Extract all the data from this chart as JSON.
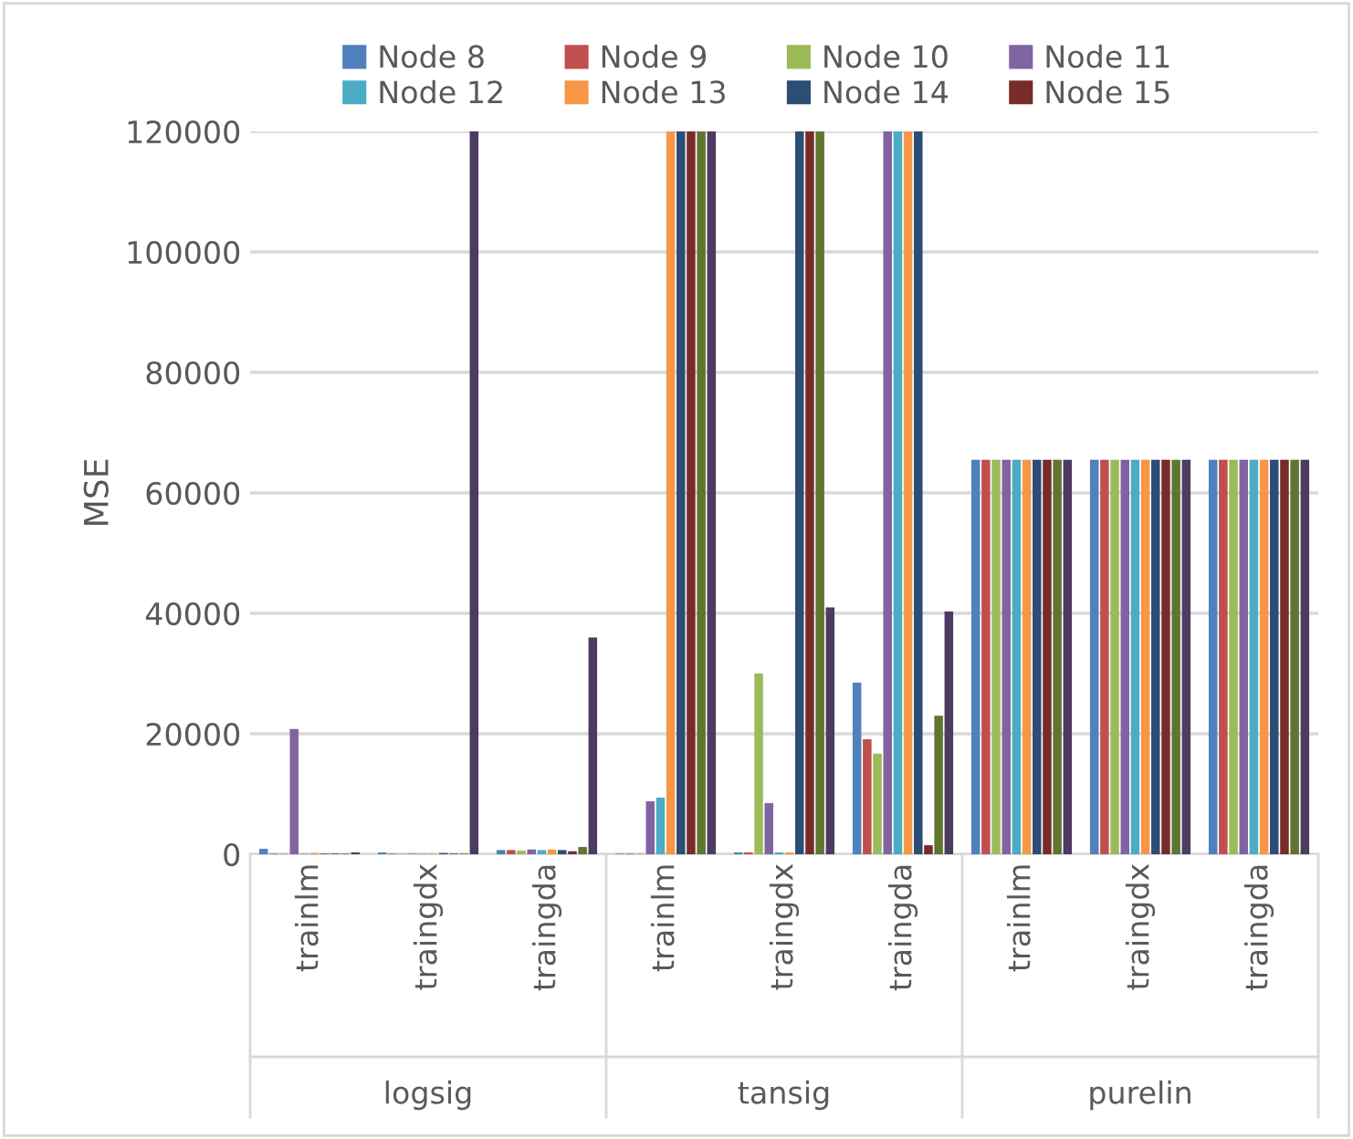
{
  "chart_data": {
    "type": "bar",
    "ylabel": "MSE",
    "categories": [
      "trainlm",
      "traingdx",
      "traingda",
      "trainlm",
      "traingdx",
      "traingda",
      "trainlm",
      "traingdx",
      "traingda"
    ],
    "annotations": [
      "logsig",
      "tansig",
      "purelin"
    ],
    "series": [
      {
        "name": "Node 8",
        "color": "#4f81bd",
        "values": [
          900,
          300,
          700,
          100,
          300,
          28500,
          65500,
          65500,
          65500
        ]
      },
      {
        "name": "Node 9",
        "color": "#c0504d",
        "values": [
          100,
          100,
          700,
          100,
          300,
          19100,
          65500,
          65500,
          65500
        ]
      },
      {
        "name": "Node 10",
        "color": "#9bbb59",
        "values": [
          100,
          100,
          600,
          100,
          30000,
          16700,
          65500,
          65500,
          65500
        ]
      },
      {
        "name": "Node 11",
        "color": "#8064a2",
        "values": [
          20800,
          100,
          800,
          8800,
          8500,
          120000,
          65500,
          65500,
          65500
        ]
      },
      {
        "name": "Node 12",
        "color": "#4bacc6",
        "values": [
          100,
          100,
          700,
          9400,
          300,
          120000,
          65500,
          65500,
          65500
        ]
      },
      {
        "name": "Node 13",
        "color": "#f79646",
        "values": [
          200,
          100,
          800,
          120000,
          300,
          120000,
          65500,
          65500,
          65500
        ]
      },
      {
        "name": "Node 14",
        "color": "#2c4d75",
        "values": [
          100,
          200,
          700,
          120000,
          120000,
          120000,
          65500,
          65500,
          65500
        ]
      },
      {
        "name": "Node 15",
        "color": "#772c2a",
        "values": [
          100,
          100,
          500,
          120000,
          120000,
          1500,
          65500,
          65500,
          65500
        ]
      },
      {
        "color": "#5f7530",
        "values": [
          100,
          100,
          1200,
          120000,
          120000,
          23000,
          65500,
          65500,
          65500
        ]
      },
      {
        "color": "#4d3b62",
        "values": [
          300,
          120000,
          36000,
          120000,
          41000,
          40300,
          65500,
          65500,
          65500
        ]
      }
    ],
    "ylim": [
      0,
      120000
    ],
    "yticks": [
      0,
      20000,
      40000,
      60000,
      80000,
      100000,
      120000
    ],
    "grid": "y",
    "legend": "top"
  }
}
